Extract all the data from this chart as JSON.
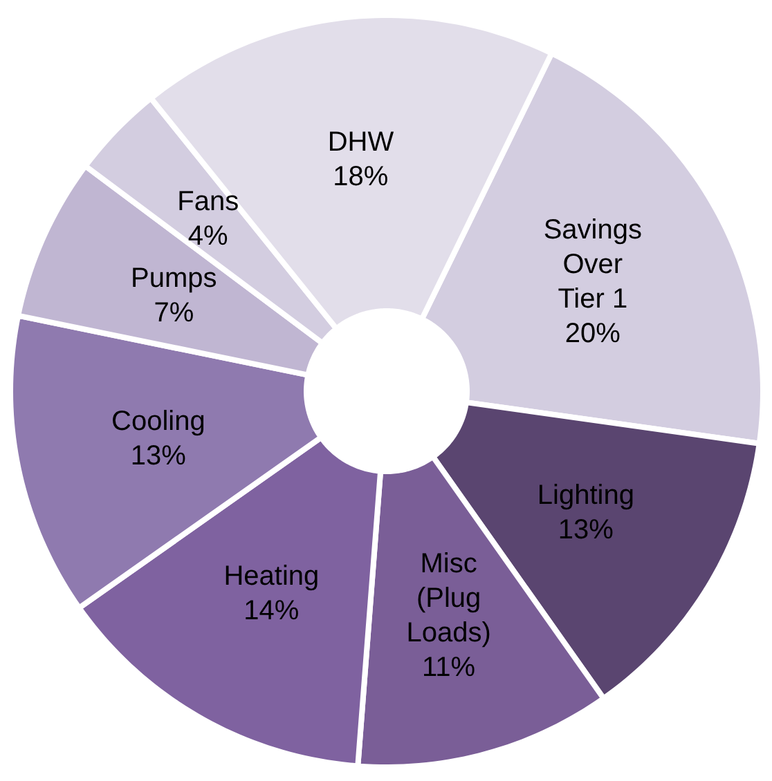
{
  "chart_data": {
    "type": "donut",
    "categories": [
      "Savings\nOver\nTier 1",
      "Lighting",
      "Misc\n(Plug\nLoads)",
      "Heating",
      "Cooling",
      "Pumps",
      "Fans",
      "DHW"
    ],
    "values": [
      20,
      13,
      11,
      14,
      13,
      7,
      4,
      18
    ],
    "value_labels": [
      "20%",
      "13%",
      "11%",
      "14%",
      "13%",
      "7%",
      "4%",
      "18%"
    ],
    "colors": [
      "#d3cde0",
      "#5a4570",
      "#7a5e97",
      "#7f62a0",
      "#8f7aaf",
      "#c0b6d2",
      "#d3cde0",
      "#e2deea"
    ]
  }
}
